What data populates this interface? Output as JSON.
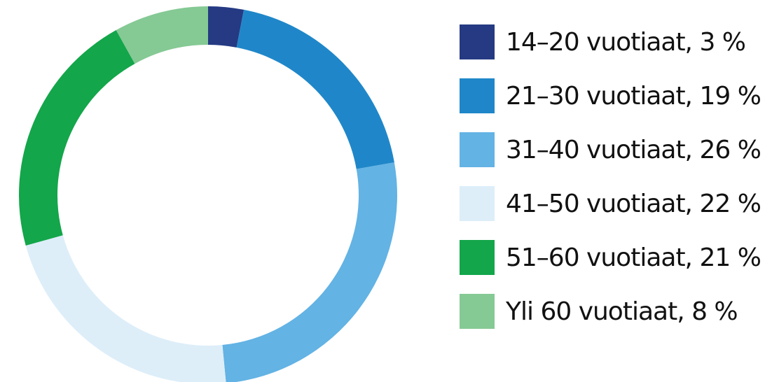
{
  "chart_data": {
    "type": "donut",
    "categories": [
      "14–20 vuotiaat, 3 %",
      "21–30 vuotiaat, 19 %",
      "31–40 vuotiaat, 26 %",
      "41–50 vuotiaat, 22 %",
      "51–60 vuotiaat, 21 %",
      "Yli 60 vuotiaat, 8 %"
    ],
    "values": [
      3,
      19,
      26,
      22,
      21,
      8
    ],
    "colors": [
      "#253a83",
      "#1f87c9",
      "#63b3e4",
      "#ddeef9",
      "#13a64a",
      "#85c994"
    ]
  }
}
